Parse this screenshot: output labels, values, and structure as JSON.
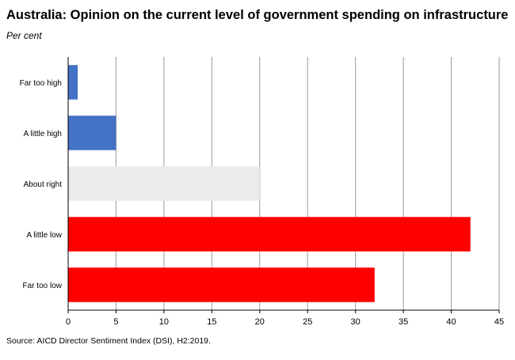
{
  "chart_data": {
    "type": "bar",
    "orientation": "horizontal",
    "title": "Australia: Opinion on the current level of government spending on infrastructure",
    "subtitle": "Per cent",
    "categories": [
      "Far too high",
      "A little high",
      "About right",
      "A little low",
      "Far too low"
    ],
    "values": [
      1,
      5,
      20,
      42,
      32
    ],
    "bar_colors": [
      "#4472c4",
      "#4472c4",
      "#ebebeb",
      "#ff0000",
      "#ff0000"
    ],
    "xlim": [
      0,
      45
    ],
    "xticks": [
      0,
      5,
      10,
      15,
      20,
      25,
      30,
      35,
      40,
      45
    ],
    "grid": true,
    "xlabel": "",
    "ylabel": "",
    "source": "Source: AICD Director Sentiment Index (DSI), H2:2019."
  }
}
